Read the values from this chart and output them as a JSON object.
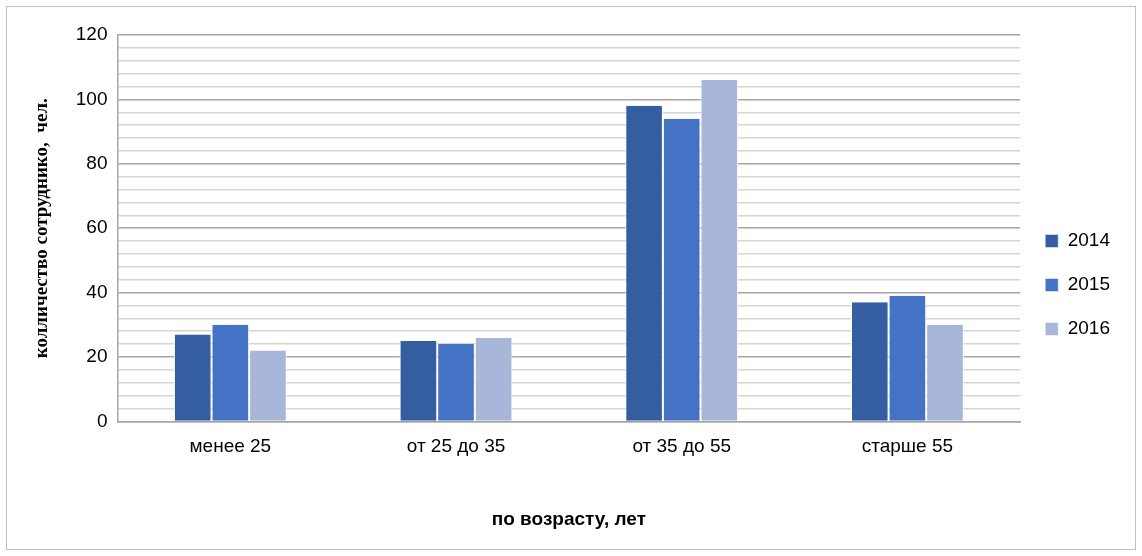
{
  "chart_data": {
    "type": "bar",
    "xlabel": "по возрасту, лет",
    "ylabel": "колличество сотруднико,  чел.",
    "categories": [
      "менее 25",
      "от 25 до 35",
      "от 35 до 55",
      "старше 55"
    ],
    "series": [
      {
        "name": "2014",
        "color": "#355ea1",
        "values": [
          27,
          25,
          98,
          37
        ]
      },
      {
        "name": "2015",
        "color": "#4472c4",
        "values": [
          30,
          24,
          94,
          39
        ]
      },
      {
        "name": "2016",
        "color": "#a8b6da",
        "values": [
          22,
          26,
          106,
          30
        ]
      }
    ],
    "ylim": [
      0,
      120
    ],
    "yticks": [
      0,
      {
        "value": 4,
        "label": null
      },
      {
        "value": 8,
        "label": null
      },
      {
        "value": 12,
        "label": null
      },
      {
        "value": 16,
        "label": null
      },
      20,
      {
        "value": 24,
        "label": null
      },
      {
        "value": 28,
        "label": null
      },
      {
        "value": 32,
        "label": null
      },
      {
        "value": 36,
        "label": null
      },
      40,
      {
        "value": 44,
        "label": null
      },
      {
        "value": 48,
        "label": null
      },
      {
        "value": 52,
        "label": null
      },
      {
        "value": 56,
        "label": null
      },
      60,
      {
        "value": 64,
        "label": null
      },
      {
        "value": 68,
        "label": null
      },
      {
        "value": 72,
        "label": null
      },
      {
        "value": 76,
        "label": null
      },
      80,
      {
        "value": 84,
        "label": null
      },
      {
        "value": 88,
        "label": null
      },
      {
        "value": 92,
        "label": null
      },
      {
        "value": 96,
        "label": null
      },
      100,
      {
        "value": 104,
        "label": null
      },
      {
        "value": 108,
        "label": null
      },
      {
        "value": 112,
        "label": null
      },
      {
        "value": 116,
        "label": null
      },
      120
    ],
    "grid": "y",
    "legend": "right"
  }
}
